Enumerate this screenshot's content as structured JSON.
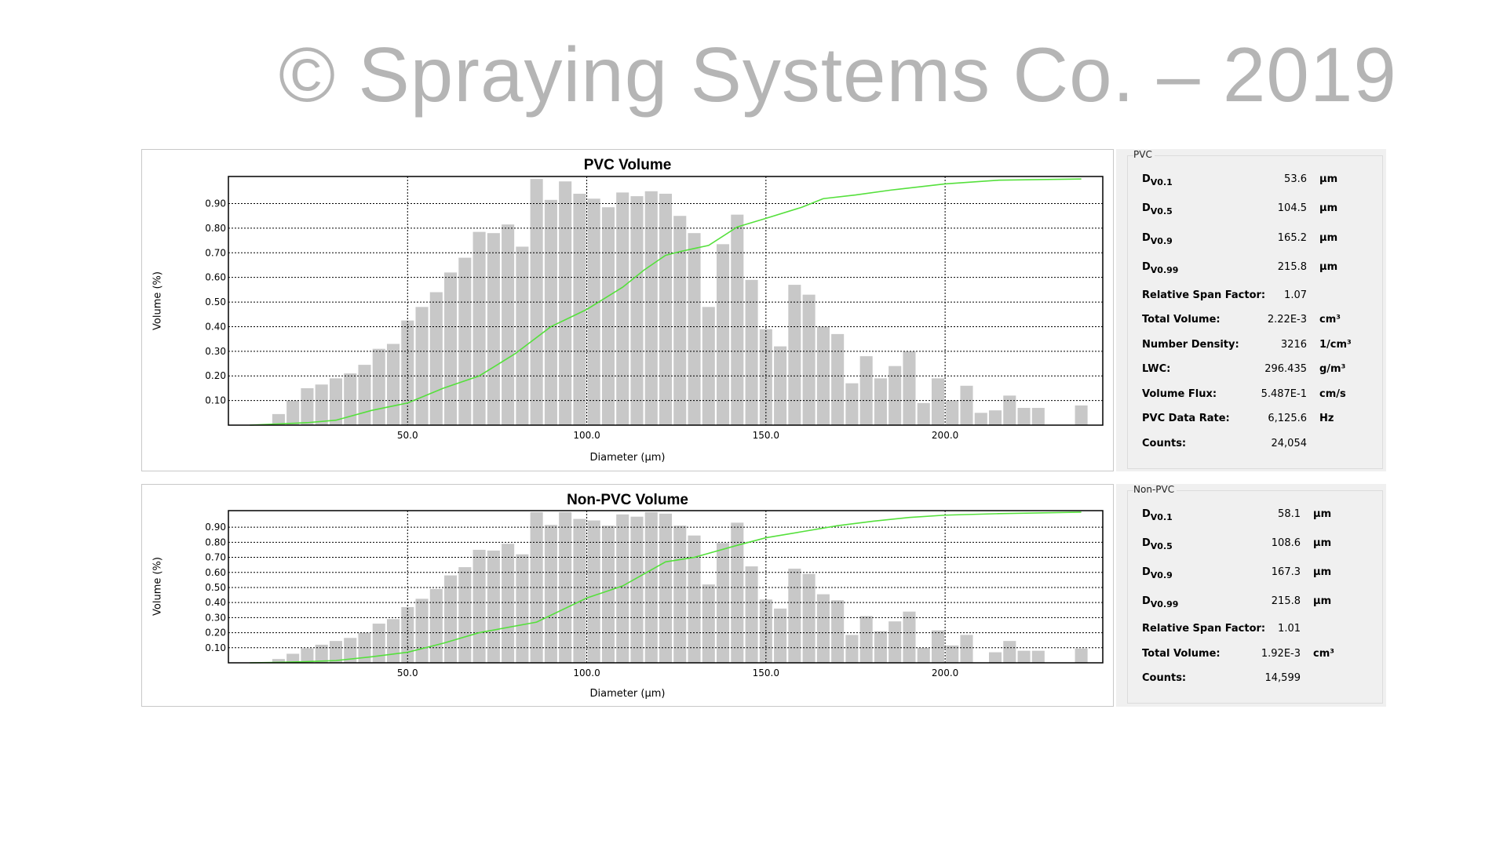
{
  "watermark": "© Spraying Systems Co. – 2019",
  "colors": {
    "bar": "#c8c8c8",
    "cumulative_line": "#55e03c",
    "grid": "#000000"
  },
  "chart_data": [
    {
      "type": "bar",
      "title": "PVC Volume",
      "xlabel": "Diameter (µm)",
      "ylabel": "Volume (%)",
      "xlim": [
        0,
        244
      ],
      "ylim": [
        0,
        1.01
      ],
      "xticks": [
        50.0,
        100.0,
        150.0,
        200.0
      ],
      "xtick_labels": [
        "50.0",
        "100.0",
        "150.0",
        "200.0"
      ],
      "yticks": [
        0.1,
        0.2,
        0.3,
        0.4,
        0.5,
        0.6,
        0.7,
        0.8,
        0.9
      ],
      "ytick_labels": [
        "0.10",
        "0.20",
        "0.30",
        "0.40",
        "0.50",
        "0.60",
        "0.70",
        "0.80",
        "0.90"
      ],
      "grid": true,
      "bars": {
        "x": [
          14,
          18,
          22,
          26,
          30,
          34,
          38,
          42,
          46,
          50,
          54,
          58,
          62,
          66,
          70,
          74,
          78,
          82,
          86,
          90,
          94,
          98,
          102,
          106,
          110,
          114,
          118,
          122,
          126,
          130,
          134,
          138,
          142,
          146,
          150,
          154,
          158,
          162,
          166,
          170,
          174,
          178,
          182,
          186,
          190,
          194,
          198,
          202,
          206,
          210,
          214,
          218,
          222,
          226,
          230,
          234,
          238
        ],
        "values": [
          0.045,
          0.1,
          0.15,
          0.165,
          0.19,
          0.21,
          0.245,
          0.31,
          0.33,
          0.425,
          0.48,
          0.54,
          0.62,
          0.68,
          0.785,
          0.78,
          0.815,
          0.725,
          1.0,
          0.915,
          0.99,
          0.94,
          0.92,
          0.885,
          0.945,
          0.93,
          0.95,
          0.94,
          0.85,
          0.78,
          0.48,
          0.735,
          0.855,
          0.59,
          0.39,
          0.32,
          0.57,
          0.53,
          0.4,
          0.37,
          0.17,
          0.28,
          0.19,
          0.24,
          0.3,
          0.09,
          0.19,
          0.1,
          0.16,
          0.05,
          0.06,
          0.12,
          0.07,
          0.07,
          0,
          0,
          0.08
        ]
      },
      "cumulative": {
        "x": [
          6,
          14,
          22,
          30,
          40,
          50,
          60,
          70,
          80,
          90,
          100,
          110,
          116,
          122,
          126,
          134,
          142,
          150,
          160,
          166,
          175,
          185,
          200,
          215,
          238
        ],
        "values": [
          0,
          0.005,
          0.01,
          0.02,
          0.06,
          0.09,
          0.15,
          0.2,
          0.29,
          0.4,
          0.47,
          0.56,
          0.63,
          0.69,
          0.705,
          0.73,
          0.805,
          0.84,
          0.885,
          0.92,
          0.935,
          0.955,
          0.98,
          0.995,
          1.0
        ]
      }
    },
    {
      "type": "bar",
      "title": "Non-PVC Volume",
      "xlabel": "Diameter (µm)",
      "ylabel": "Volume (%)",
      "xlim": [
        0,
        244
      ],
      "ylim": [
        0,
        1.01
      ],
      "xticks": [
        50.0,
        100.0,
        150.0,
        200.0
      ],
      "xtick_labels": [
        "50.0",
        "100.0",
        "150.0",
        "200.0"
      ],
      "yticks": [
        0.1,
        0.2,
        0.3,
        0.4,
        0.5,
        0.6,
        0.7,
        0.8,
        0.9
      ],
      "ytick_labels": [
        "0.10",
        "0.20",
        "0.30",
        "0.40",
        "0.50",
        "0.60",
        "0.70",
        "0.80",
        "0.90"
      ],
      "grid": true,
      "bars": {
        "x": [
          14,
          18,
          22,
          26,
          30,
          34,
          38,
          42,
          46,
          50,
          54,
          58,
          62,
          66,
          70,
          74,
          78,
          82,
          86,
          90,
          94,
          98,
          102,
          106,
          110,
          114,
          118,
          122,
          126,
          130,
          134,
          138,
          142,
          146,
          150,
          154,
          158,
          162,
          166,
          170,
          174,
          178,
          182,
          186,
          190,
          194,
          198,
          202,
          206,
          210,
          214,
          218,
          222,
          226,
          230,
          234,
          238
        ],
        "values": [
          0.025,
          0.06,
          0.096,
          0.12,
          0.145,
          0.165,
          0.2,
          0.26,
          0.29,
          0.37,
          0.425,
          0.49,
          0.58,
          0.635,
          0.75,
          0.745,
          0.79,
          0.72,
          1.0,
          0.915,
          1.0,
          0.955,
          0.945,
          0.91,
          0.985,
          0.97,
          1.0,
          0.99,
          0.91,
          0.845,
          0.52,
          0.795,
          0.93,
          0.64,
          0.42,
          0.36,
          0.625,
          0.59,
          0.455,
          0.415,
          0.185,
          0.31,
          0.21,
          0.275,
          0.34,
          0.1,
          0.215,
          0.115,
          0.185,
          0,
          0.07,
          0.145,
          0.08,
          0.08,
          0,
          0,
          0.095
        ]
      },
      "cumulative": {
        "x": [
          6,
          14,
          22,
          30,
          40,
          50,
          60,
          70,
          86,
          100,
          110,
          122,
          130,
          142,
          150,
          160,
          170,
          180,
          190,
          200,
          215,
          238
        ],
        "values": [
          0,
          0.003,
          0.008,
          0.015,
          0.04,
          0.07,
          0.13,
          0.2,
          0.27,
          0.43,
          0.51,
          0.67,
          0.7,
          0.78,
          0.83,
          0.87,
          0.91,
          0.94,
          0.965,
          0.98,
          0.99,
          1.0
        ]
      }
    }
  ],
  "panels": [
    {
      "title": "PVC",
      "rows": [
        {
          "label": "D",
          "sub": "V0.1",
          "value": "53.6",
          "unit": "µm"
        },
        {
          "label": "D",
          "sub": "V0.5",
          "value": "104.5",
          "unit": "µm"
        },
        {
          "label": "D",
          "sub": "V0.9",
          "value": "165.2",
          "unit": "µm"
        },
        {
          "label": "D",
          "sub": "V0.99",
          "value": "215.8",
          "unit": "µm"
        },
        {
          "label": "Relative Span Factor:",
          "value": "1.07",
          "unit": ""
        },
        {
          "label": "Total Volume:",
          "value": "2.22E-3",
          "unit": "cm³"
        },
        {
          "label": "Number Density:",
          "value": "3216",
          "unit": "1/cm³"
        },
        {
          "label": "LWC:",
          "value": "296.435",
          "unit": "g/m³"
        },
        {
          "label": "Volume Flux:",
          "value": "5.487E-1",
          "unit": "cm/s"
        },
        {
          "label": "PVC Data Rate:",
          "value": "6,125.6",
          "unit": "Hz"
        },
        {
          "label": "Counts:",
          "value": "24,054",
          "unit": ""
        }
      ]
    },
    {
      "title": "Non-PVC",
      "rows": [
        {
          "label": "D",
          "sub": "V0.1",
          "value": "58.1",
          "unit": "µm"
        },
        {
          "label": "D",
          "sub": "V0.5",
          "value": "108.6",
          "unit": "µm"
        },
        {
          "label": "D",
          "sub": "V0.9",
          "value": "167.3",
          "unit": "µm"
        },
        {
          "label": "D",
          "sub": "V0.99",
          "value": "215.8",
          "unit": "µm"
        },
        {
          "label": "Relative Span Factor:",
          "value": "1.01",
          "unit": ""
        },
        {
          "label": "Total Volume:",
          "value": "1.92E-3",
          "unit": "cm³"
        },
        {
          "label": "Counts:",
          "value": "14,599",
          "unit": ""
        }
      ]
    }
  ]
}
